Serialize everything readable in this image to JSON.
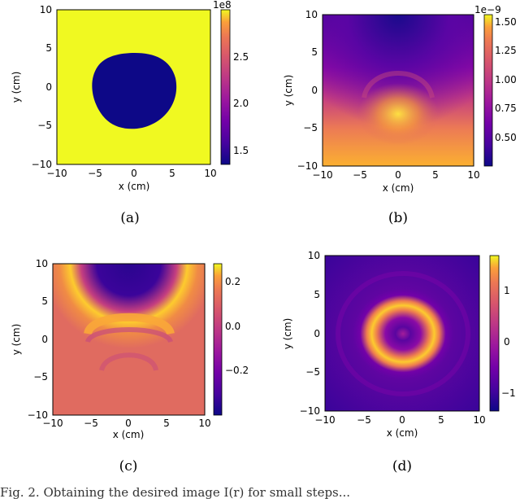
{
  "figure": {
    "caption_prefix": "Fig. 2.",
    "caption_rest": "Obtaining the desired image I(r) for small steps..."
  },
  "panels": [
    {
      "label": "(a)",
      "xlabel": "x (cm)",
      "ylabel": "y (cm)",
      "colorbar": {
        "exponent": "1e8",
        "ticks": [
          "1.5",
          "2.0",
          "2.5"
        ]
      }
    },
    {
      "label": "(b)",
      "xlabel": "x (cm)",
      "ylabel": "y (cm)",
      "colorbar": {
        "exponent": "1e−9",
        "ticks": [
          "0.50",
          "0.75",
          "1.00",
          "1.25",
          "1.50"
        ]
      }
    },
    {
      "label": "(c)",
      "xlabel": "x (cm)",
      "ylabel": "y (cm)",
      "colorbar": {
        "exponent": "",
        "ticks": [
          "−0.2",
          "0.0",
          "0.2"
        ]
      }
    },
    {
      "label": "(d)",
      "xlabel": "x (cm)",
      "ylabel": "y (cm)",
      "colorbar": {
        "exponent": "",
        "ticks": [
          "−1",
          "0",
          "1"
        ]
      }
    }
  ],
  "chart_data": [
    {
      "type": "heatmap",
      "xlim": [
        -10,
        10
      ],
      "ylim": [
        -10,
        10
      ],
      "xticks": [
        "−10",
        "−5",
        "0",
        "5",
        "10"
      ],
      "yticks": [
        "10",
        "5",
        "0",
        "−5",
        "−10"
      ],
      "colormap": "plasma",
      "colorbar_range": [
        1.35,
        2.95
      ],
      "colorbar_scale": "1e8"
    },
    {
      "type": "heatmap",
      "xlim": [
        -10,
        10
      ],
      "ylim": [
        -10,
        10
      ],
      "xticks": [
        "−10",
        "−5",
        "0",
        "5",
        "10"
      ],
      "yticks": [
        "10",
        "5",
        "0",
        "−5",
        "−10"
      ],
      "colormap": "plasma",
      "colorbar_range": [
        0.3,
        1.6
      ],
      "colorbar_scale": "1e-9"
    },
    {
      "type": "heatmap",
      "xlim": [
        -10,
        10
      ],
      "ylim": [
        -10,
        10
      ],
      "xticks": [
        "−10",
        "−5",
        "0",
        "5",
        "10"
      ],
      "yticks": [
        "10",
        "5",
        "0",
        "−5",
        "−10"
      ],
      "colormap": "plasma",
      "colorbar_range": [
        -0.38,
        0.27
      ]
    },
    {
      "type": "heatmap",
      "xlim": [
        -10,
        10
      ],
      "ylim": [
        -10,
        10
      ],
      "xticks": [
        "−10",
        "−5",
        "0",
        "5",
        "10"
      ],
      "yticks": [
        "10",
        "5",
        "0",
        "−5",
        "−10"
      ],
      "colormap": "plasma",
      "colorbar_range": [
        -1.5,
        1.7
      ]
    }
  ]
}
